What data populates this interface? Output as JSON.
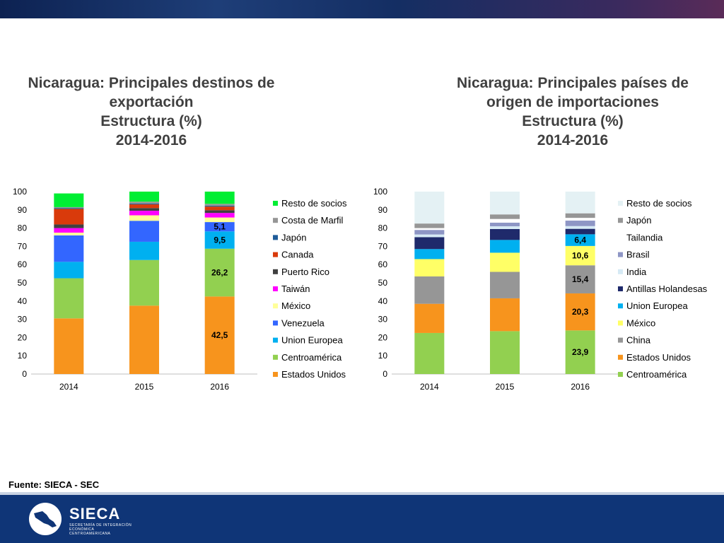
{
  "source": "Fuente: SIECA - SEC",
  "logo": {
    "name": "SIECA",
    "subtitle": "SECRETARÍA DE INTEGRACIÓN ECONÓMICA CENTROAMERICANA"
  },
  "colors": {
    "top_bar": "#1e3e78",
    "bottom_bar": "#0f3577"
  },
  "chart_data": [
    {
      "type": "bar",
      "stacked": true,
      "title": [
        "Nicaragua: Principales destinos de",
        "exportación",
        "Estructura (%)",
        "2014-2016"
      ],
      "categories": [
        "2014",
        "2015",
        "2016"
      ],
      "ylim": [
        0,
        100
      ],
      "yticks": [
        0,
        10,
        20,
        30,
        40,
        50,
        60,
        70,
        80,
        90,
        100
      ],
      "grid": false,
      "legend_position": "right",
      "series": [
        {
          "name": "Estados Unidos",
          "color": "#f7941d",
          "values": [
            30.5,
            37.5,
            42.5
          ],
          "labels": [
            "",
            "",
            "42,5"
          ]
        },
        {
          "name": "Centroamérica",
          "color": "#92d050",
          "values": [
            22.0,
            25.0,
            26.2
          ],
          "labels": [
            "",
            "",
            "26,2"
          ]
        },
        {
          "name": "Union Europea",
          "color": "#00b0f0",
          "values": [
            9.0,
            10.0,
            9.5
          ],
          "labels": [
            "",
            "",
            "9,5"
          ]
        },
        {
          "name": "Venezuela",
          "color": "#3366ff",
          "values": [
            14.5,
            11.5,
            5.1
          ],
          "labels": [
            "",
            "",
            "5,1"
          ]
        },
        {
          "name": "México",
          "color": "#ffff99",
          "values": [
            1.5,
            3.0,
            2.5
          ],
          "labels": [
            "",
            "",
            ""
          ]
        },
        {
          "name": "Taiwán",
          "color": "#ff00ff",
          "values": [
            2.5,
            2.5,
            2.5
          ],
          "labels": [
            "",
            "",
            ""
          ]
        },
        {
          "name": "Puerto Rico",
          "color": "#404040",
          "values": [
            2.0,
            1.5,
            1.5
          ],
          "labels": [
            "",
            "",
            ""
          ]
        },
        {
          "name": "Canada",
          "color": "#d93a0b",
          "values": [
            8.5,
            2.0,
            2.0
          ],
          "labels": [
            "",
            "",
            ""
          ]
        },
        {
          "name": "Japón",
          "color": "#1f5c99",
          "values": [
            0.5,
            0.5,
            0.5
          ],
          "labels": [
            "",
            "",
            ""
          ]
        },
        {
          "name": "Costa de Marfil",
          "color": "#969696",
          "values": [
            0.5,
            1.0,
            1.0
          ],
          "labels": [
            "",
            "",
            ""
          ]
        },
        {
          "name": "Resto de socios",
          "color": "#00ee33",
          "values": [
            7.5,
            5.5,
            6.7
          ],
          "labels": [
            "",
            "",
            ""
          ]
        }
      ]
    },
    {
      "type": "bar",
      "stacked": true,
      "title": [
        "Nicaragua: Principales países de",
        "origen de importaciones",
        "Estructura (%)",
        "2014-2016"
      ],
      "categories": [
        "2014",
        "2015",
        "2016"
      ],
      "ylim": [
        0,
        100
      ],
      "yticks": [
        0,
        10,
        20,
        30,
        40,
        50,
        60,
        70,
        80,
        90,
        100
      ],
      "grid": false,
      "legend_position": "right",
      "series": [
        {
          "name": "Centroamérica",
          "color": "#92d050",
          "values": [
            22.5,
            23.5,
            23.9
          ],
          "labels": [
            "",
            "",
            "23,9"
          ]
        },
        {
          "name": "Estados Unidos",
          "color": "#f7941d",
          "values": [
            16.0,
            18.0,
            20.3
          ],
          "labels": [
            "",
            "",
            "20,3"
          ]
        },
        {
          "name": "China",
          "color": "#969696",
          "values": [
            15.0,
            14.5,
            15.4
          ],
          "labels": [
            "",
            "",
            "15,4"
          ]
        },
        {
          "name": "México",
          "color": "#ffff66",
          "values": [
            9.5,
            10.5,
            10.6
          ],
          "labels": [
            "",
            "",
            "10,6"
          ]
        },
        {
          "name": "Union Europea",
          "color": "#00b0f0",
          "values": [
            5.5,
            7.0,
            6.4
          ],
          "labels": [
            "",
            "",
            "6,4"
          ]
        },
        {
          "name": "Antillas Holandesas",
          "color": "#1f2a6b",
          "values": [
            6.5,
            6.0,
            3.0
          ],
          "labels": [
            "",
            "",
            ""
          ]
        },
        {
          "name": "India",
          "color": "#d6eaf5",
          "values": [
            1.5,
            1.5,
            1.5
          ],
          "labels": [
            "",
            "",
            ""
          ]
        },
        {
          "name": "Brasil",
          "color": "#8e96c5",
          "values": [
            2.5,
            2.0,
            3.0
          ],
          "labels": [
            "",
            "",
            ""
          ]
        },
        {
          "name": "Tailandia",
          "color": "#ffffff",
          "values": [
            1.0,
            2.0,
            1.5
          ],
          "labels": [
            "",
            "",
            ""
          ]
        },
        {
          "name": "Japón",
          "color": "#969696",
          "values": [
            2.5,
            2.5,
            2.5
          ],
          "labels": [
            "",
            "",
            ""
          ]
        },
        {
          "name": "Resto de socios",
          "color": "#e4f1f4",
          "values": [
            17.5,
            12.5,
            11.9
          ],
          "labels": [
            "",
            "",
            ""
          ]
        }
      ]
    }
  ]
}
